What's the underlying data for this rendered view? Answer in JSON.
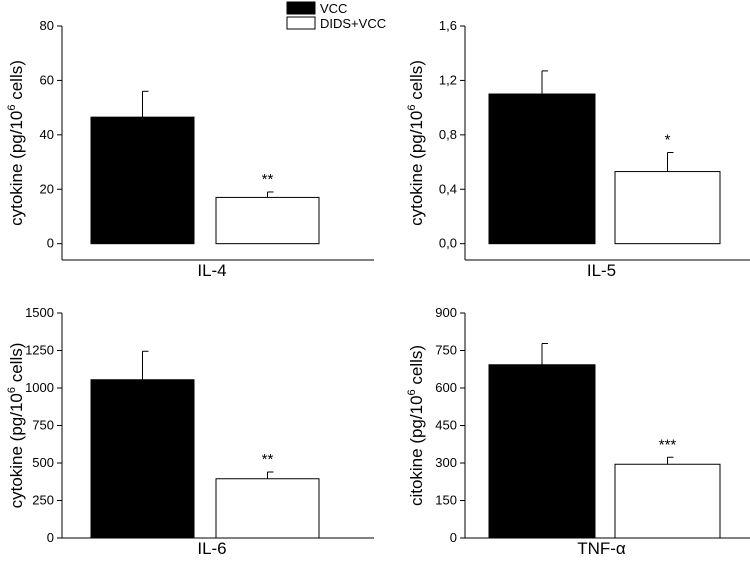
{
  "legend": [
    {
      "label": "VCC",
      "color": "#000000"
    },
    {
      "label": "DIDS+VCC",
      "color": "#ffffff"
    }
  ],
  "chart_data": [
    {
      "type": "bar",
      "categories": [
        "VCC",
        "DIDS+VCC"
      ],
      "values": [
        46.5,
        17
      ],
      "errors": [
        9.5,
        2
      ],
      "significance": [
        "",
        "**"
      ],
      "xlabel": "IL-4",
      "ylabel": "cytokine (pg/10",
      "ylabel_sup": "6",
      "ylabel_end": " cells)",
      "ylim": [
        -6,
        80
      ],
      "ticks": [
        0,
        20,
        40,
        60,
        80
      ],
      "tick_labels": [
        "0",
        "20",
        "40",
        "60",
        "80"
      ]
    },
    {
      "type": "bar",
      "categories": [
        "VCC",
        "DIDS+VCC"
      ],
      "values": [
        1.1,
        0.53
      ],
      "errors": [
        0.17,
        0.14
      ],
      "significance": [
        "",
        "*"
      ],
      "xlabel": "IL-5",
      "ylabel": "cytokine (pg/10",
      "ylabel_sup": "6",
      "ylabel_end": " cells)",
      "ylim": [
        -0.12,
        1.6
      ],
      "ticks": [
        0.0,
        0.4,
        0.8,
        1.2,
        1.6
      ],
      "tick_labels": [
        "0,0",
        "0,4",
        "0,8",
        "1,2",
        "1,6"
      ]
    },
    {
      "type": "bar",
      "categories": [
        "VCC",
        "DIDS+VCC"
      ],
      "values": [
        1055,
        395
      ],
      "errors": [
        190,
        45
      ],
      "significance": [
        "",
        "**"
      ],
      "xlabel": "IL-6",
      "ylabel": "cytokine (pg/10",
      "ylabel_sup": "6",
      "ylabel_end": " cells)",
      "ylim": [
        0,
        1500
      ],
      "ticks": [
        0,
        250,
        500,
        750,
        1000,
        1250,
        1500
      ],
      "tick_labels": [
        "0",
        "250",
        "500",
        "750",
        "1000",
        "1250",
        "1500"
      ]
    },
    {
      "type": "bar",
      "categories": [
        "VCC",
        "DIDS+VCC"
      ],
      "values": [
        693,
        295
      ],
      "errors": [
        85,
        28
      ],
      "significance": [
        "",
        "***"
      ],
      "xlabel": "TNF-α",
      "ylabel": "citokine (pg/10",
      "ylabel_sup": "6",
      "ylabel_end": " cells)",
      "ylim": [
        0,
        900
      ],
      "ticks": [
        0,
        150,
        300,
        450,
        600,
        750,
        900
      ],
      "tick_labels": [
        "0",
        "150",
        "300",
        "450",
        "600",
        "750",
        "900"
      ]
    }
  ]
}
